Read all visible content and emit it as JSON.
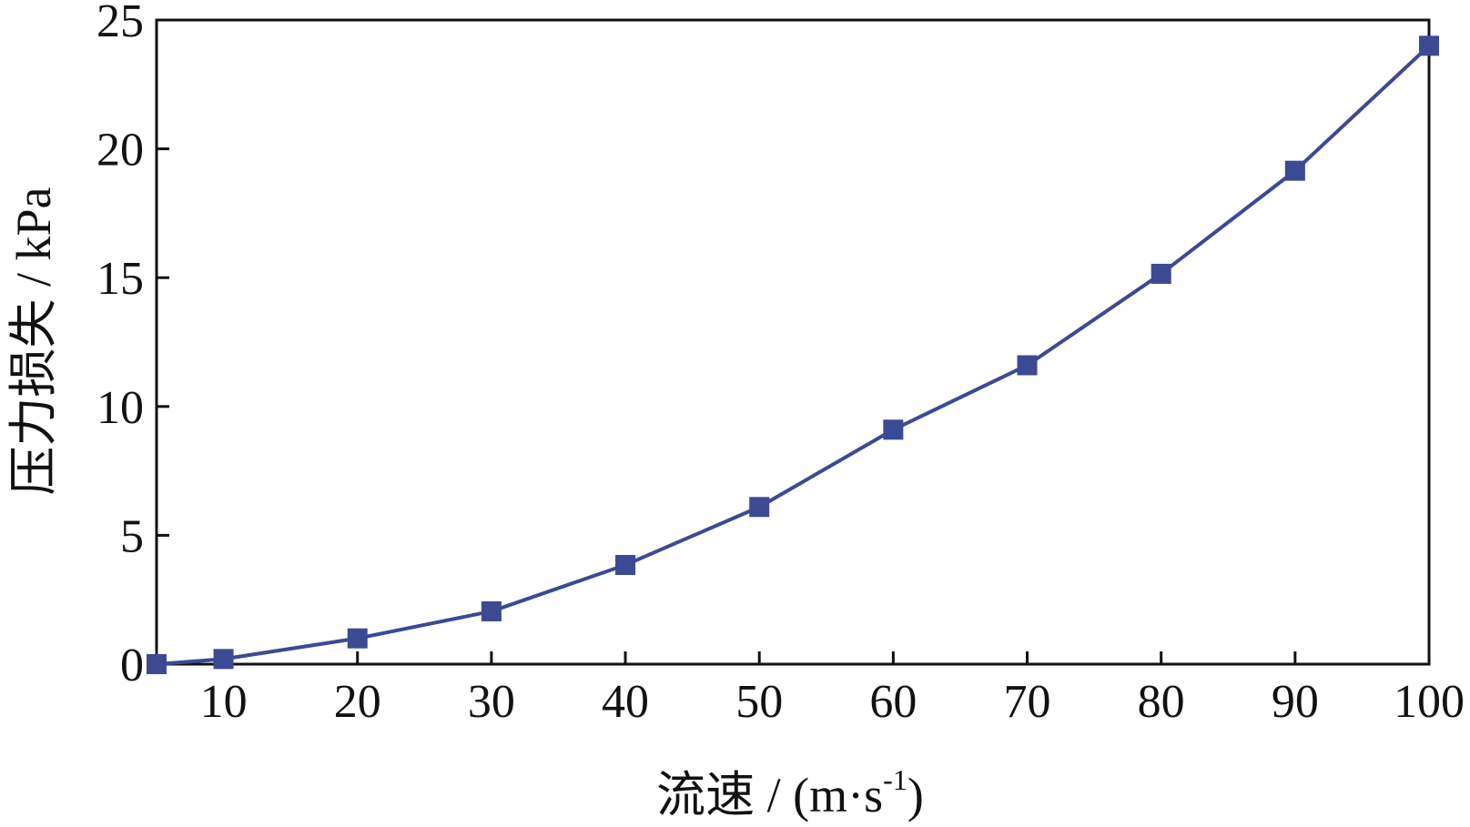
{
  "chart_data": {
    "type": "line",
    "title": "",
    "xlabel": "流速 / (m·s",
    "xlabel_sup": "-1",
    "xlabel_close": ")",
    "ylabel": "压力损失 / kPa",
    "xlim": [
      5,
      100
    ],
    "ylim": [
      0,
      25
    ],
    "xticks": [
      10,
      20,
      30,
      40,
      50,
      60,
      70,
      80,
      90,
      100
    ],
    "yticks": [
      0,
      5,
      10,
      15,
      20,
      25
    ],
    "grid": false,
    "legend": "none",
    "series": [
      {
        "x": [
          5,
          10,
          20,
          30,
          40,
          50,
          60,
          70,
          80,
          90,
          100
        ],
        "y": [
          0.0,
          0.2,
          1.0,
          2.05,
          3.85,
          6.1,
          9.1,
          11.6,
          15.15,
          19.15,
          24.0
        ],
        "marker": "square",
        "color": "#3b4a93"
      }
    ]
  }
}
